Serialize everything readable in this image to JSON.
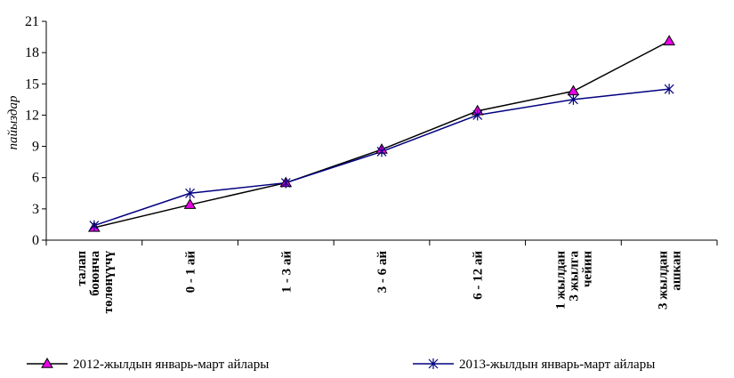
{
  "chart_data": {
    "type": "line",
    "ylabel": "пайыздар",
    "xlabel": "",
    "ylim": [
      0,
      21
    ],
    "yticks": [
      0,
      3,
      6,
      9,
      12,
      15,
      18,
      21
    ],
    "grid": false,
    "legend_position": "bottom",
    "categories": [
      [
        "талап",
        "боюнча",
        "төлөнүүчү"
      ],
      [
        "0 - 1 ай"
      ],
      [
        "1 - 3 ай"
      ],
      [
        "3 - 6 ай"
      ],
      [
        "6 - 12 ай"
      ],
      [
        "1 жылдан",
        "3 жылга",
        "чейин"
      ],
      [
        "3 жылдан",
        "ашкан"
      ]
    ],
    "series": [
      {
        "name": "2012-жылдын январь-март айлары",
        "marker": "triangle",
        "line_color": "#000000",
        "marker_color": "#e600e6",
        "values": [
          1.2,
          3.4,
          5.5,
          8.7,
          12.4,
          14.3,
          19.1
        ]
      },
      {
        "name": "2013-жылдын январь-март айлары",
        "marker": "star",
        "line_color": "#000080",
        "marker_color": "#000080",
        "values": [
          1.4,
          4.5,
          5.5,
          8.5,
          12.0,
          13.5,
          14.5
        ]
      }
    ]
  }
}
